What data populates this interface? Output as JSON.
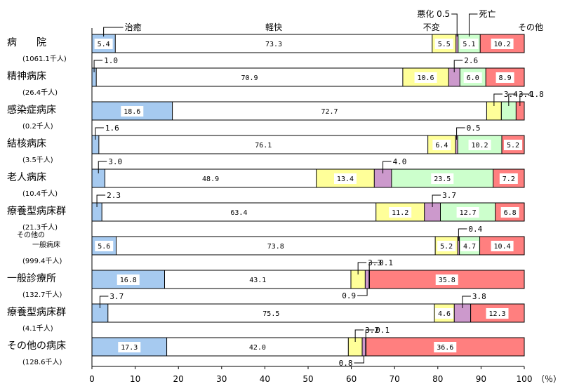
{
  "chart_data": {
    "type": "bar",
    "orientation": "horizontal",
    "stacked": true,
    "normalized": true,
    "xlim": [
      0,
      100
    ],
    "xticks": [
      "0",
      "10",
      "20",
      "30",
      "40",
      "50",
      "60",
      "70",
      "80",
      "90",
      "100"
    ],
    "xunit": "（％）",
    "categories": [
      {
        "name": "病　　院",
        "sub": "(1061.1千人)"
      },
      {
        "name": "精神病床",
        "sub": "(26.4千人)"
      },
      {
        "name": "感染症病床",
        "sub": "(0.2千人)"
      },
      {
        "name": "結核病床",
        "sub": "(3.5千人)"
      },
      {
        "name": "老人病床",
        "sub": "(10.4千人)"
      },
      {
        "name": "療養型病床群",
        "sub": "(21.3千人)"
      },
      {
        "name": "その他の一般病床",
        "sub": "(999.4千人)"
      },
      {
        "name": "一般診療所",
        "sub": "(132.7千人)"
      },
      {
        "name": "療養型病床群",
        "sub": "(4.1千人)"
      },
      {
        "name": "その他の病床",
        "sub": "(128.6千人)"
      }
    ],
    "series": [
      {
        "name": "治癒",
        "color": "#a6caf0",
        "values": [
          5.4,
          1.0,
          18.6,
          1.6,
          3.0,
          2.3,
          5.6,
          16.8,
          3.7,
          17.3
        ]
      },
      {
        "name": "軽快",
        "color": "#ffffff",
        "values": [
          73.3,
          70.9,
          72.7,
          76.1,
          48.9,
          63.4,
          73.8,
          43.1,
          75.5,
          42.0
        ]
      },
      {
        "name": "不変",
        "color": "#ffff99",
        "values": [
          5.5,
          10.6,
          3.4,
          6.4,
          13.4,
          11.2,
          5.2,
          3.3,
          4.6,
          3.2
        ]
      },
      {
        "name": "悪化",
        "color": "#cc99cc",
        "values": [
          0.5,
          2.6,
          0.0,
          0.5,
          4.0,
          3.7,
          0.4,
          0.9,
          3.8,
          0.8
        ]
      },
      {
        "name": "死亡",
        "color": "#ccffcc",
        "values": [
          5.1,
          6.0,
          3.4,
          10.2,
          23.5,
          12.7,
          4.7,
          0.1,
          0.0,
          0.1
        ]
      },
      {
        "name": "その他",
        "color": "#ff7f7f",
        "values": [
          10.2,
          8.9,
          1.8,
          5.2,
          7.2,
          6.8,
          10.4,
          35.8,
          12.3,
          36.6
        ]
      }
    ],
    "legend_labels": [
      "治癒",
      "軽快",
      "悪化 0.5",
      "不変",
      "死亡",
      "その他"
    ],
    "annotations": [
      {
        "row": 1,
        "series": 0,
        "text": "1.0"
      },
      {
        "row": 1,
        "series": 3,
        "text": "2.6"
      },
      {
        "row": 2,
        "series": 2,
        "text": "3.4"
      },
      {
        "row": 2,
        "series": 4,
        "text": "3.4"
      },
      {
        "row": 2,
        "series": 5,
        "text": "1.8"
      },
      {
        "row": 3,
        "series": 0,
        "text": "1.6"
      },
      {
        "row": 3,
        "series": 3,
        "text": "0.5"
      },
      {
        "row": 4,
        "series": 0,
        "text": "3.0"
      },
      {
        "row": 4,
        "series": 3,
        "text": "4.0"
      },
      {
        "row": 5,
        "series": 0,
        "text": "2.3"
      },
      {
        "row": 5,
        "series": 3,
        "text": "3.7"
      },
      {
        "row": 6,
        "series": 3,
        "text": "0.4"
      },
      {
        "row": 7,
        "series": 2,
        "text": "3.3"
      },
      {
        "row": 7,
        "series": 4,
        "text": "0.1"
      },
      {
        "row": 7,
        "series": 3,
        "text": "0.9",
        "below": true
      },
      {
        "row": 8,
        "series": 0,
        "text": "3.7"
      },
      {
        "row": 8,
        "series": 3,
        "text": "3.8"
      },
      {
        "row": 9,
        "series": 2,
        "text": "3.2"
      },
      {
        "row": 9,
        "series": 4,
        "text": "0.1"
      },
      {
        "row": 9,
        "series": 3,
        "text": "0.8",
        "below": true
      }
    ],
    "inside_labels": [
      [
        "5.4",
        "73.3",
        "5.5",
        "",
        "5.1",
        "10.2"
      ],
      [
        "",
        "70.9",
        "10.6",
        "",
        "6.0",
        "8.9"
      ],
      [
        "18.6",
        "72.7",
        "",
        "",
        "",
        ""
      ],
      [
        "",
        "76.1",
        "6.4",
        "",
        "10.2",
        "5.2"
      ],
      [
        "",
        "48.9",
        "13.4",
        "",
        "23.5",
        "7.2"
      ],
      [
        "",
        "63.4",
        "11.2",
        "",
        "12.7",
        "6.8"
      ],
      [
        "5.6",
        "73.8",
        "5.2",
        "",
        "4.7",
        "10.4"
      ],
      [
        "16.8",
        "43.1",
        "",
        "",
        "",
        "35.8"
      ],
      [
        "",
        "75.5",
        "4.6",
        "",
        "",
        "12.3"
      ],
      [
        "17.3",
        "42.0",
        "",
        "",
        "",
        "36.6"
      ]
    ]
  }
}
